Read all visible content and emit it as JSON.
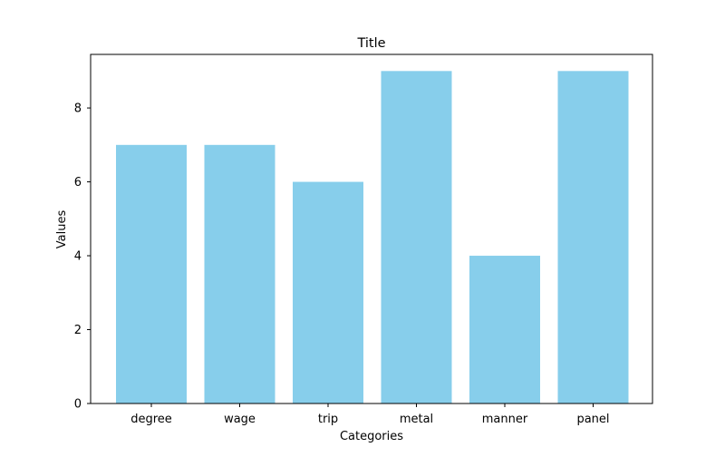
{
  "chart_data": {
    "type": "bar",
    "title": "Title",
    "xlabel": "Categories",
    "ylabel": "Values",
    "categories": [
      "degree",
      "wage",
      "trip",
      "metal",
      "manner",
      "panel"
    ],
    "values": [
      7,
      7,
      6,
      9,
      4,
      9
    ],
    "ylim": [
      0,
      9.45
    ],
    "yticks": [
      0,
      2,
      4,
      6,
      8
    ],
    "grid": false,
    "bar_color": "#87ceeb"
  }
}
